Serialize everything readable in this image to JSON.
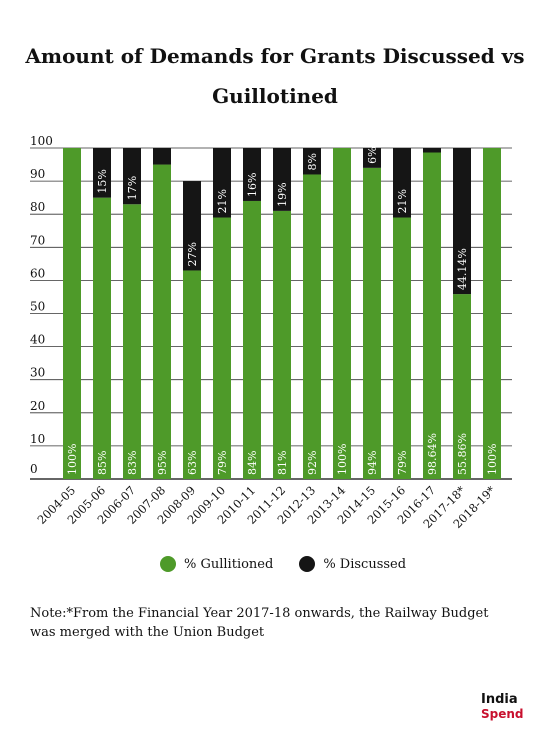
{
  "title": "Amount of Demands for Grants Discussed vs Guillotined",
  "legend": {
    "guillotined_label": "% Gullitioned",
    "discussed_label": "% Discussed"
  },
  "note": "Note:*From the Financial Year 2017-18 onwards, the Railway Budget was merged with the Union Budget",
  "logo": {
    "line1": "India",
    "line2": "Spend"
  },
  "colors": {
    "guillotined": "#4e9a29",
    "discussed": "#151515",
    "grid": "#333333"
  },
  "chart_data": {
    "type": "bar",
    "stacked": true,
    "categories": [
      "2004-05",
      "2005-06",
      "2006-07",
      "2007-08",
      "2008-09",
      "2009-10",
      "2010-11",
      "2011-12",
      "2012-13",
      "2013-14",
      "2014-15",
      "2015-16",
      "2016-17",
      "2017-18*",
      "2018-19*"
    ],
    "series": [
      {
        "name": "% Gullitioned",
        "values": [
          100,
          85,
          83,
          95,
          63,
          79,
          84,
          81,
          92,
          100,
          94,
          79,
          98.64,
          55.86,
          100
        ],
        "labels": [
          "100%",
          "85%",
          "83%",
          "95%",
          "63%",
          "79%",
          "84%",
          "81%",
          "92%",
          "100%",
          "94%",
          "79%",
          "98.64%",
          "55.86%",
          "100%"
        ]
      },
      {
        "name": "% Discussed",
        "values": [
          0,
          15,
          17,
          5,
          27,
          21,
          16,
          19,
          8,
          0,
          6,
          21,
          1.36,
          44.14,
          0
        ],
        "labels": [
          "",
          "15%",
          "17%",
          "",
          "27%",
          "21%",
          "16%",
          "19%",
          "8%",
          "",
          "6%",
          "21%",
          "",
          "44.14%",
          ""
        ]
      }
    ],
    "yticks": [
      0,
      10,
      20,
      30,
      40,
      50,
      60,
      70,
      80,
      90,
      100
    ],
    "ylim": [
      0,
      100
    ],
    "grid": true,
    "legend_position": "bottom"
  }
}
